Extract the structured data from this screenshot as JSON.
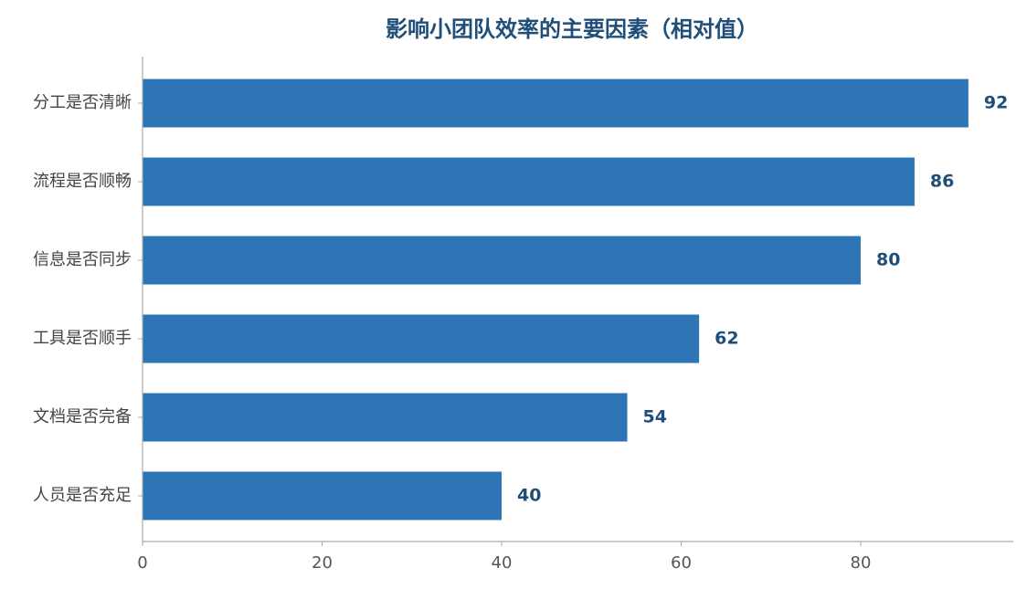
{
  "chart_data": {
    "type": "bar",
    "orientation": "horizontal",
    "title": "影响小团队效率的主要因素（相对值）",
    "xlabel": "",
    "ylabel": "",
    "categories": [
      "分工是否清晰",
      "流程是否顺畅",
      "信息是否同步",
      "工具是否顺手",
      "文档是否完备",
      "人员是否充足"
    ],
    "values": [
      92,
      86,
      80,
      62,
      54,
      40
    ],
    "xlim": [
      0,
      97
    ],
    "xticks": [
      0,
      20,
      40,
      60,
      80
    ],
    "grid": false,
    "legend": "none",
    "show_value_labels": true,
    "colors": {
      "bar": "#2e75b6",
      "title": "#1f4e79",
      "value_label": "#1f4e79",
      "axis": "#aaaaaa",
      "tick_text": "#555555"
    }
  }
}
